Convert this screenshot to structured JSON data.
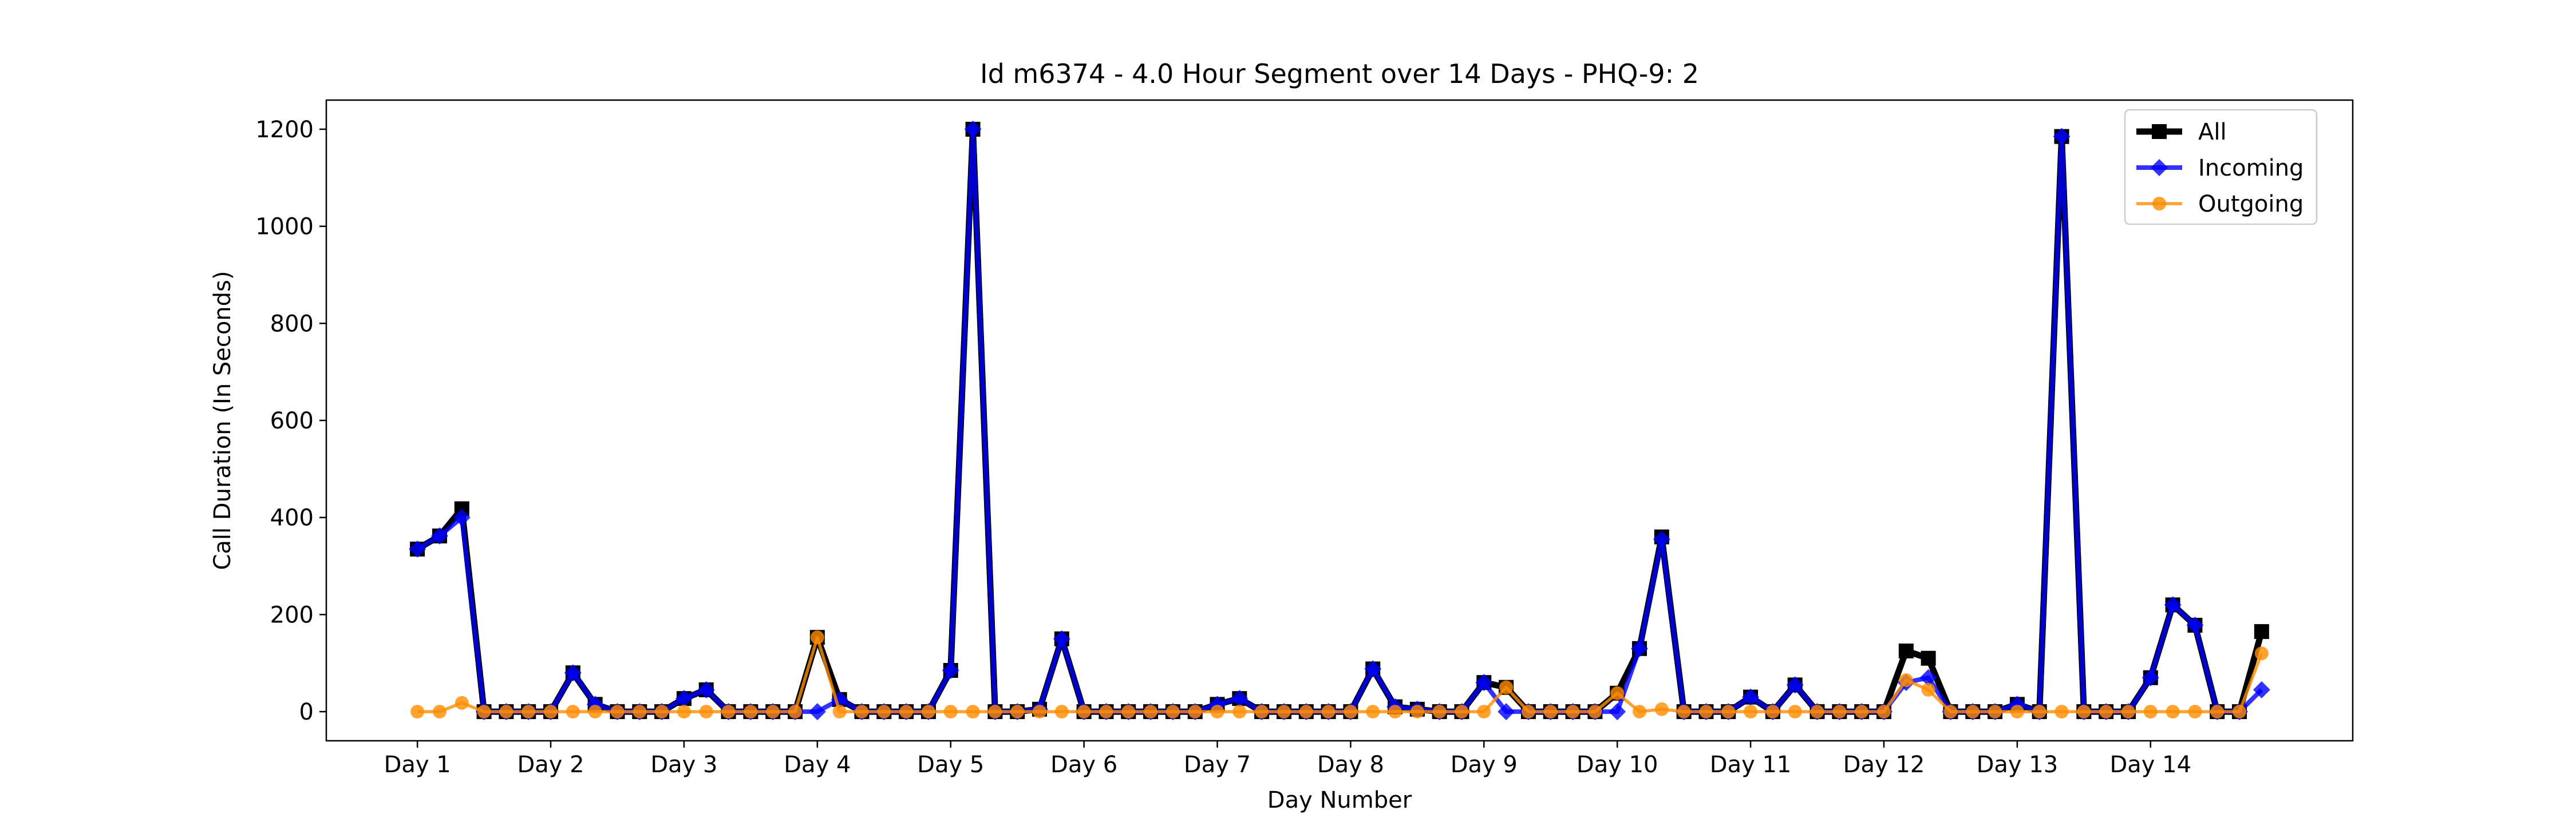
{
  "chart_data": {
    "type": "line",
    "title": "Id m6374 - 4.0 Hour Segment over 14 Days - PHQ-9: 2",
    "xlabel": "Day Number",
    "ylabel": "Call Duration (In Seconds)",
    "x_tick_labels": [
      "Day 1",
      "Day 2",
      "Day 3",
      "Day 4",
      "Day 5",
      "Day 6",
      "Day 7",
      "Day 8",
      "Day 9",
      "Day 10",
      "Day 11",
      "Day 12",
      "Day 13",
      "Day 14"
    ],
    "x_tick_positions": [
      0,
      6,
      12,
      18,
      24,
      30,
      36,
      42,
      48,
      54,
      60,
      66,
      72,
      78
    ],
    "x": [
      0,
      1,
      2,
      3,
      4,
      5,
      6,
      7,
      8,
      9,
      10,
      11,
      12,
      13,
      14,
      15,
      16,
      17,
      18,
      19,
      20,
      21,
      22,
      23,
      24,
      25,
      26,
      27,
      28,
      29,
      30,
      31,
      32,
      33,
      34,
      35,
      36,
      37,
      38,
      39,
      40,
      41,
      42,
      43,
      44,
      45,
      46,
      47,
      48,
      49,
      50,
      51,
      52,
      53,
      54,
      55,
      56,
      57,
      58,
      59,
      60,
      61,
      62,
      63,
      64,
      65,
      66,
      67,
      68,
      69,
      70,
      71,
      72,
      73,
      74,
      75,
      76,
      77,
      78,
      79,
      80,
      81,
      82,
      83
    ],
    "xlim": [
      -4.1,
      87.1
    ],
    "ylim": [
      -60,
      1260
    ],
    "y_ticks": [
      0,
      200,
      400,
      600,
      800,
      1000,
      1200
    ],
    "grid": false,
    "legend_position": "top-right",
    "series": [
      {
        "name": "All",
        "color": "#000000",
        "marker": "square",
        "values": [
          335,
          362,
          418,
          0,
          0,
          0,
          0,
          80,
          15,
          0,
          0,
          0,
          27,
          45,
          0,
          0,
          0,
          0,
          153,
          25,
          0,
          0,
          0,
          0,
          85,
          1200,
          0,
          0,
          5,
          150,
          0,
          0,
          0,
          0,
          0,
          0,
          15,
          27,
          0,
          0,
          0,
          0,
          0,
          88,
          10,
          5,
          0,
          0,
          60,
          50,
          0,
          0,
          0,
          0,
          38,
          130,
          360,
          0,
          0,
          0,
          30,
          0,
          55,
          0,
          0,
          0,
          0,
          125,
          110,
          0,
          0,
          0,
          15,
          0,
          1185,
          0,
          0,
          0,
          70,
          220,
          178,
          0,
          0,
          165
        ]
      },
      {
        "name": "Incoming",
        "color": "#0000ff",
        "marker": "diamond",
        "values": [
          335,
          362,
          400,
          0,
          0,
          0,
          0,
          80,
          15,
          0,
          0,
          0,
          27,
          45,
          0,
          0,
          0,
          0,
          0,
          25,
          0,
          0,
          0,
          0,
          85,
          1200,
          0,
          0,
          5,
          150,
          0,
          0,
          0,
          0,
          0,
          0,
          15,
          27,
          0,
          0,
          0,
          0,
          0,
          88,
          10,
          5,
          0,
          0,
          60,
          0,
          0,
          0,
          0,
          0,
          0,
          130,
          355,
          0,
          0,
          0,
          30,
          0,
          55,
          0,
          0,
          0,
          0,
          60,
          70,
          0,
          0,
          0,
          15,
          0,
          1185,
          0,
          0,
          0,
          70,
          220,
          178,
          0,
          0,
          45
        ]
      },
      {
        "name": "Outgoing",
        "color": "#ff8c00",
        "marker": "circle",
        "values": [
          0,
          0,
          18,
          0,
          0,
          0,
          0,
          0,
          0,
          0,
          0,
          0,
          0,
          0,
          0,
          0,
          0,
          0,
          153,
          0,
          0,
          0,
          0,
          0,
          0,
          0,
          0,
          0,
          0,
          0,
          0,
          0,
          0,
          0,
          0,
          0,
          0,
          0,
          0,
          0,
          0,
          0,
          0,
          0,
          0,
          0,
          0,
          0,
          0,
          50,
          0,
          0,
          0,
          0,
          38,
          0,
          5,
          0,
          0,
          0,
          0,
          0,
          0,
          0,
          0,
          0,
          0,
          65,
          45,
          0,
          0,
          0,
          0,
          0,
          0,
          0,
          0,
          0,
          0,
          0,
          0,
          0,
          0,
          120
        ]
      }
    ]
  }
}
